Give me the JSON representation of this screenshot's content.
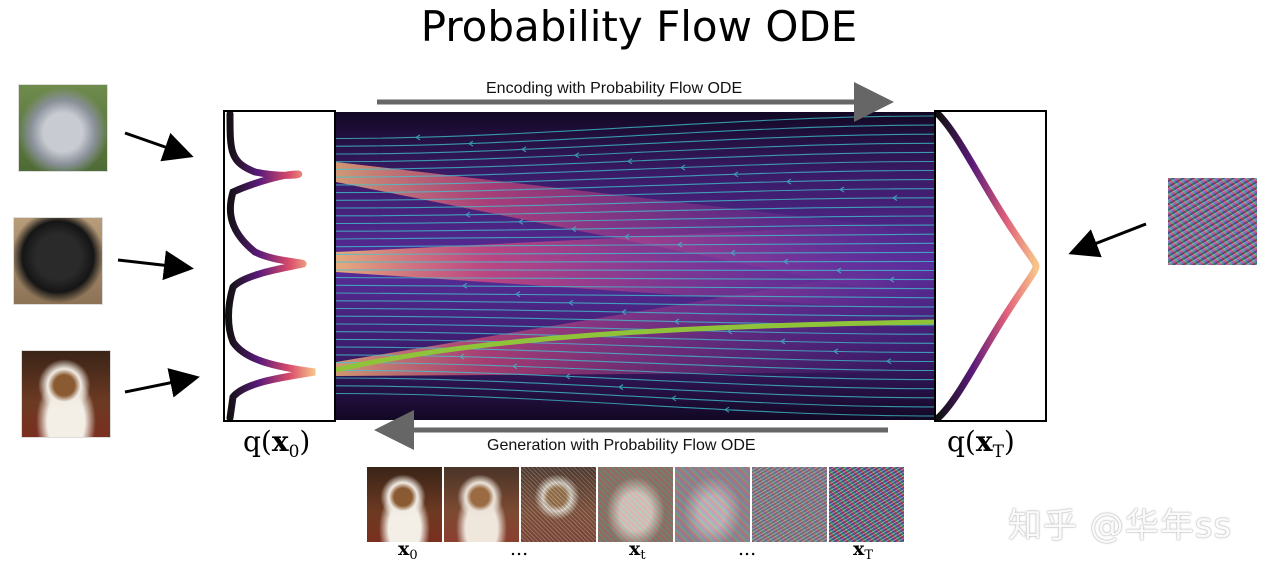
{
  "title": "Probability Flow ODE",
  "encoding_label": "Encoding with Probability Flow ODE",
  "generation_label": "Generation with Probability Flow ODE",
  "q_x0": {
    "fn": "q(",
    "var": "x",
    "sub": "0",
    "close": ")"
  },
  "q_xT": {
    "fn": "q(",
    "var": "x",
    "sub": "T",
    "close": ")"
  },
  "strip_labels": [
    {
      "var": "x",
      "sub": "0"
    },
    {
      "text": "..."
    },
    {
      "var": "x",
      "sub": "t"
    },
    {
      "text": "..."
    },
    {
      "var": "x",
      "sub": "T"
    }
  ],
  "watermark": "知乎 @华年ss",
  "colors": {
    "arrow_gray": "#666666",
    "trajectory_green": "#8fc43a",
    "streamline_cyan": "#3fc6d0",
    "density_dark": "#1a0a3a",
    "density_bright": "#f6b87a"
  },
  "icons": [
    "cat-photo",
    "noise-image"
  ]
}
